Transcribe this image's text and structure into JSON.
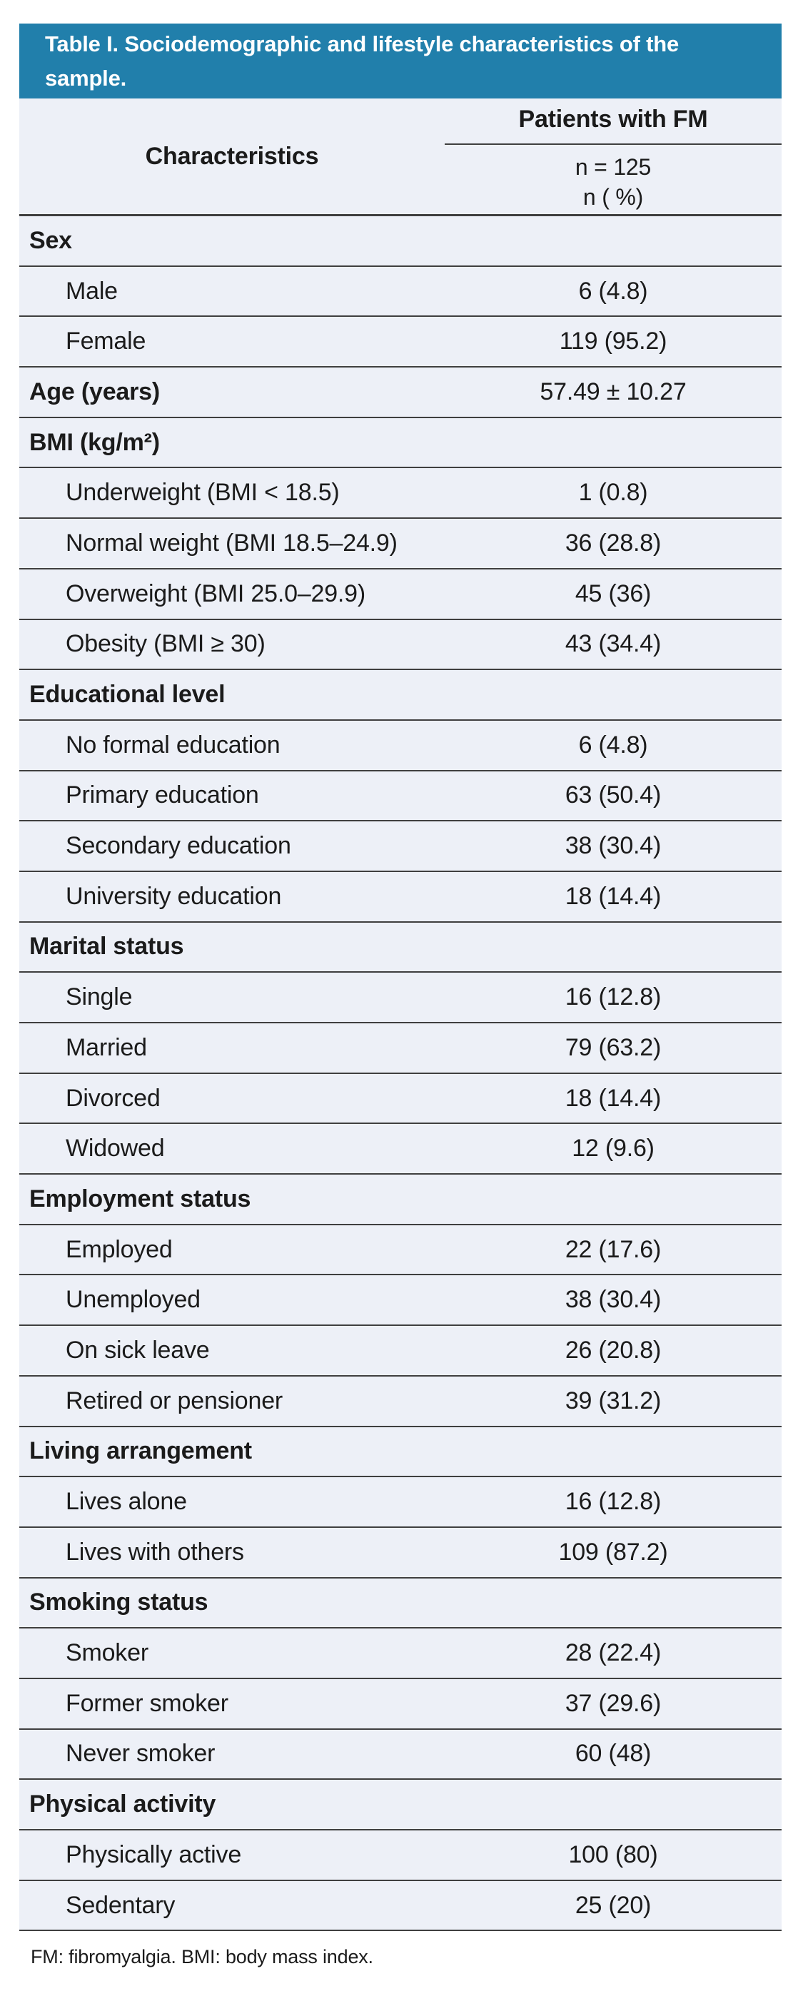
{
  "colors": {
    "header_bg": "#217fab",
    "body_bg": "#edf0f7",
    "divider": "#3f3f3f",
    "title_text": "#ffffff",
    "text": "#1b1b1b",
    "page_bg": "#ffffff"
  },
  "table": {
    "title": "Table I. Sociodemographic and lifestyle characteristics of the sample.",
    "header": {
      "characteristics_label": "Characteristics",
      "group_label": "Patients with FM",
      "sample_size": "n = 125",
      "unit": "n ( %)"
    },
    "rows": [
      {
        "type": "category",
        "label": "Sex",
        "value": ""
      },
      {
        "type": "item",
        "label": "Male",
        "value": "6 (4.8)"
      },
      {
        "type": "item",
        "label": "Female",
        "value": "119 (95.2)"
      },
      {
        "type": "category",
        "label": "Age (years)",
        "value": "57.49 ± 10.27"
      },
      {
        "type": "category",
        "label": "BMI (kg/m²)",
        "value": ""
      },
      {
        "type": "item",
        "label": "Underweight (BMI < 18.5)",
        "value": "1 (0.8)"
      },
      {
        "type": "item",
        "label": "Normal weight (BMI 18.5–24.9)",
        "value": "36 (28.8)"
      },
      {
        "type": "item",
        "label": "Overweight (BMI 25.0–29.9)",
        "value": "45 (36)"
      },
      {
        "type": "item",
        "label": "Obesity (BMI ≥ 30)",
        "value": "43 (34.4)"
      },
      {
        "type": "category",
        "label": "Educational level",
        "value": ""
      },
      {
        "type": "item",
        "label": "No formal education",
        "value": "6 (4.8)"
      },
      {
        "type": "item",
        "label": "Primary education",
        "value": "63 (50.4)"
      },
      {
        "type": "item",
        "label": "Secondary education",
        "value": "38 (30.4)"
      },
      {
        "type": "item",
        "label": "University education",
        "value": "18 (14.4)"
      },
      {
        "type": "category",
        "label": "Marital status",
        "value": ""
      },
      {
        "type": "item",
        "label": "Single",
        "value": "16 (12.8)"
      },
      {
        "type": "item",
        "label": "Married",
        "value": "79 (63.2)"
      },
      {
        "type": "item",
        "label": "Divorced",
        "value": "18 (14.4)"
      },
      {
        "type": "item",
        "label": "Widowed",
        "value": "12 (9.6)"
      },
      {
        "type": "category",
        "label": "Employment status",
        "value": ""
      },
      {
        "type": "item",
        "label": "Employed",
        "value": "22 (17.6)"
      },
      {
        "type": "item",
        "label": "Unemployed",
        "value": "38 (30.4)"
      },
      {
        "type": "item",
        "label": "On sick leave",
        "value": "26 (20.8)"
      },
      {
        "type": "item",
        "label": "Retired or pensioner",
        "value": "39 (31.2)"
      },
      {
        "type": "category",
        "label": "Living arrangement",
        "value": ""
      },
      {
        "type": "item",
        "label": "Lives alone",
        "value": "16 (12.8)"
      },
      {
        "type": "item",
        "label": "Lives with others",
        "value": "109 (87.2)"
      },
      {
        "type": "category",
        "label": "Smoking status",
        "value": ""
      },
      {
        "type": "item",
        "label": "Smoker",
        "value": "28 (22.4)"
      },
      {
        "type": "item",
        "label": "Former smoker",
        "value": "37 (29.6)"
      },
      {
        "type": "item",
        "label": "Never smoker",
        "value": "60 (48)"
      },
      {
        "type": "category",
        "label": "Physical activity",
        "value": ""
      },
      {
        "type": "item",
        "label": "Physically active",
        "value": "100 (80)"
      },
      {
        "type": "item",
        "label": "Sedentary",
        "value": "25 (20)"
      }
    ],
    "footnote": "FM: fibromyalgia. BMI: body mass index."
  }
}
